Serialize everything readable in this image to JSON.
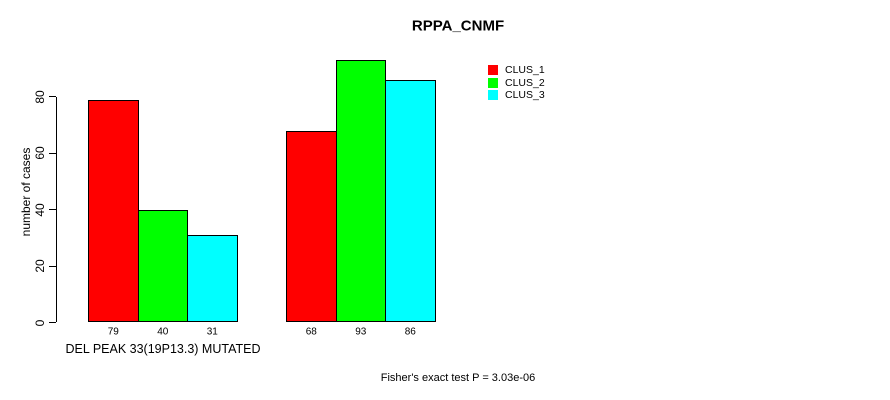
{
  "title": "RPPA_CNMF",
  "chart_data": {
    "type": "bar",
    "title": "RPPA_CNMF",
    "ylabel": "number of cases",
    "xlabel": "DEL PEAK 33(19P13.3) MUTATED",
    "categories": [
      "DEL PEAK 33(19P13.3) MUTATED",
      ""
    ],
    "series": [
      {
        "name": "CLUS_1",
        "color": "#ff0000",
        "values": [
          79,
          68
        ]
      },
      {
        "name": "CLUS_2",
        "color": "#00ff00",
        "values": [
          40,
          93
        ]
      },
      {
        "name": "CLUS_3",
        "color": "#00ffff",
        "values": [
          31,
          86
        ]
      }
    ],
    "yticks": [
      0,
      20,
      40,
      60,
      80
    ],
    "ylim": [
      0,
      95
    ],
    "grid": false,
    "bar_value_labels_shown": true,
    "legend_position": "top-right",
    "legend_entries": [
      "CLUS_1",
      "CLUS_2",
      "CLUS_3"
    ]
  },
  "annotations": {
    "fisher_text": "Fisher's exact test P = 3.03e-06"
  }
}
